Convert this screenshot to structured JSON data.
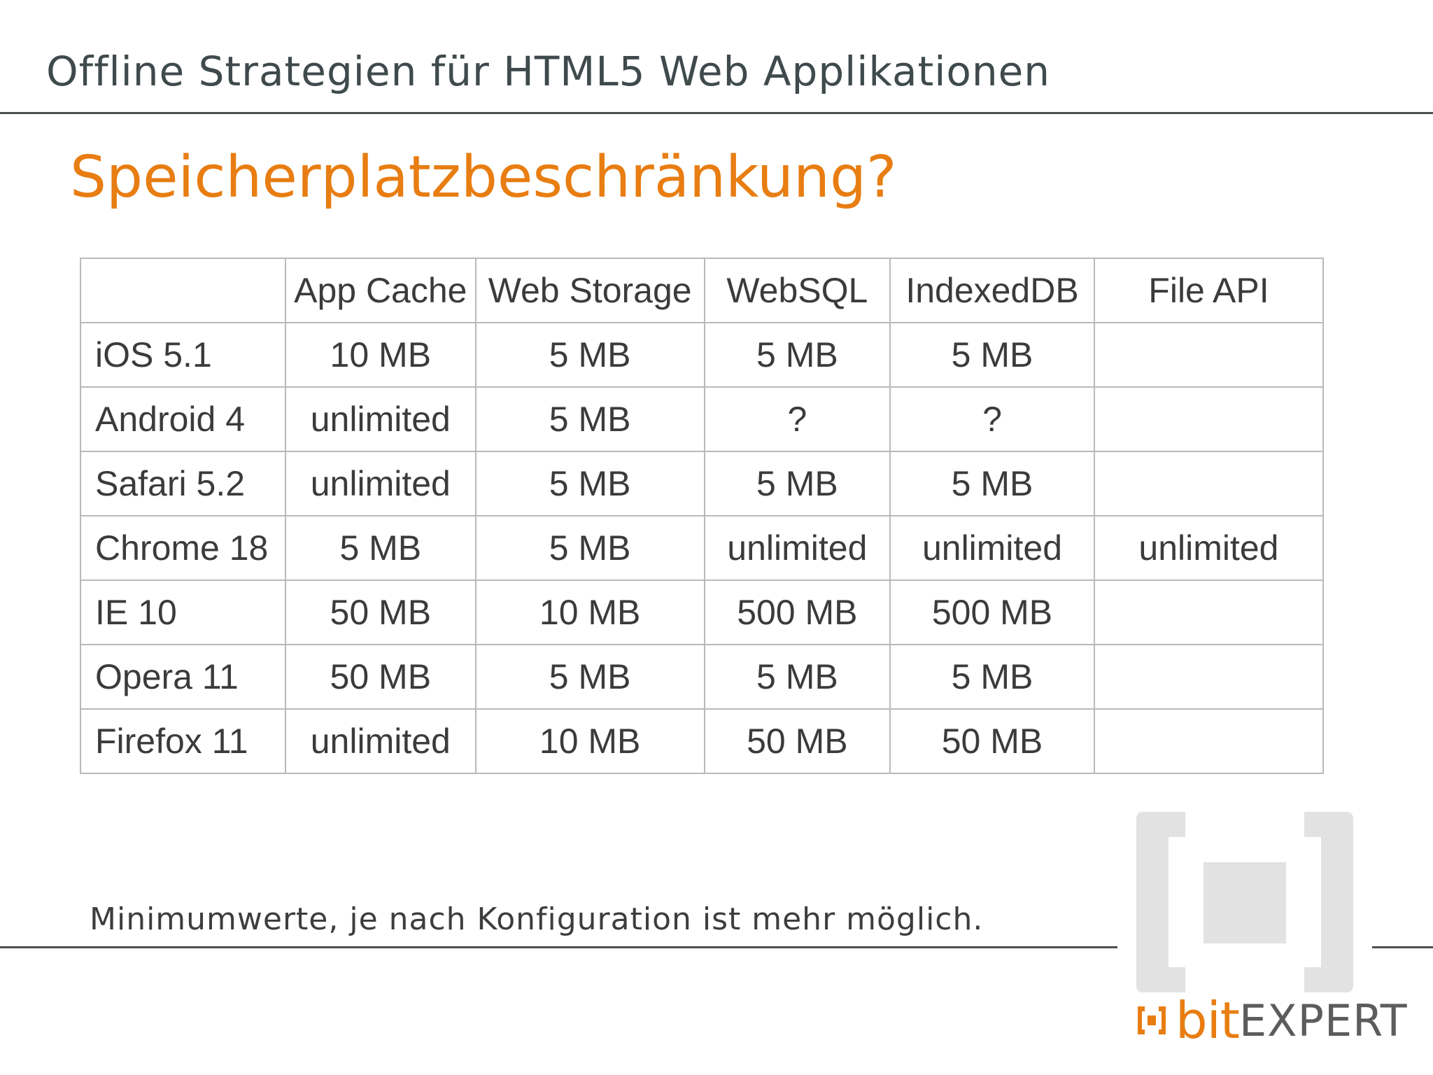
{
  "header": {
    "title": "Offline Strategien für HTML5 Web Applikationen"
  },
  "slide": {
    "title": "Speicherplatzbeschränkung?"
  },
  "table": {
    "columns": [
      "",
      "App Cache",
      "Web Storage",
      "WebSQL",
      "IndexedDB",
      "File API"
    ],
    "rows": [
      [
        "iOS 5.1",
        "10 MB",
        "5 MB",
        "5 MB",
        "5 MB",
        ""
      ],
      [
        "Android 4",
        "unlimited",
        "5 MB",
        "?",
        "?",
        ""
      ],
      [
        "Safari 5.2",
        "unlimited",
        "5 MB",
        "5 MB",
        "5 MB",
        ""
      ],
      [
        "Chrome 18",
        "5 MB",
        "5 MB",
        "unlimited",
        "unlimited",
        "unlimited"
      ],
      [
        "IE 10",
        "50 MB",
        "10 MB",
        "500 MB",
        "500 MB",
        ""
      ],
      [
        "Opera 11",
        "50 MB",
        "5 MB",
        "5 MB",
        "5 MB",
        ""
      ],
      [
        "Firefox 11",
        "unlimited",
        "10 MB",
        "50 MB",
        "50 MB",
        ""
      ]
    ]
  },
  "footer": {
    "note": "Minimumwerte, je nach Konfiguration ist mehr möglich."
  },
  "logo": {
    "bit": "bit",
    "expert": "EXPERT",
    "icon": "bracket-square-logo-icon"
  },
  "colors": {
    "accent": "#e87d12",
    "text": "#3f4a4c",
    "rule": "#4a4f51",
    "grid": "#b9b9b9",
    "logo_gray": "#e2e2e2"
  }
}
